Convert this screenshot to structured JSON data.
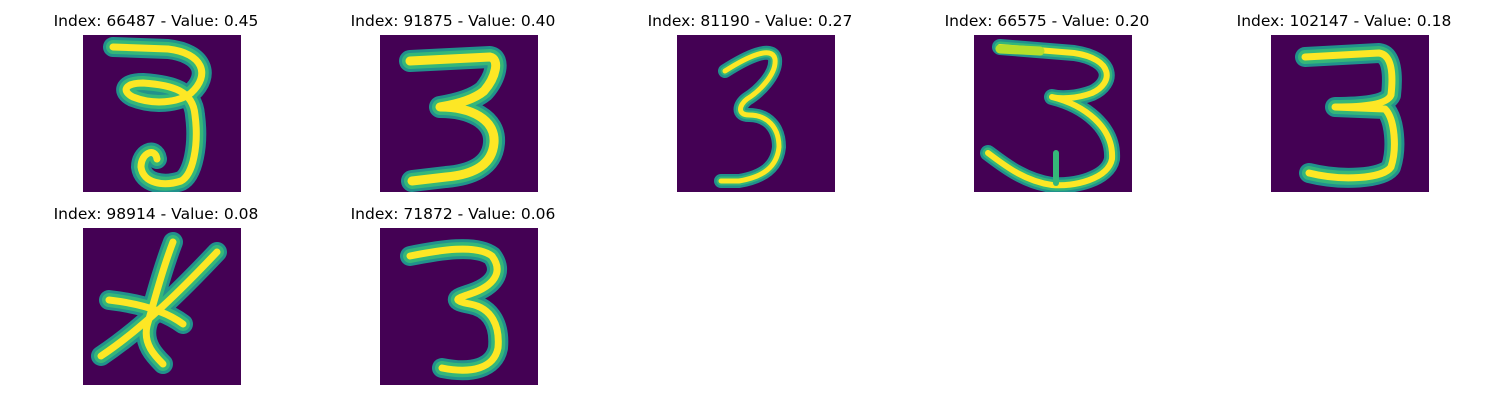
{
  "panels": [
    {
      "title": "Index: 66487 - Value: 0.45",
      "image": "handwritten-digit-3"
    },
    {
      "title": "Index: 91875 - Value: 0.40",
      "image": "handwritten-digit-3"
    },
    {
      "title": "Index: 81190 - Value: 0.27",
      "image": "handwritten-digit-3"
    },
    {
      "title": "Index: 66575 - Value: 0.20",
      "image": "handwritten-digit-3"
    },
    {
      "title": "Index: 102147 - Value: 0.18",
      "image": "handwritten-digit-3"
    },
    {
      "title": "Index: 98914 - Value: 0.08",
      "image": "handwritten-crossed-strokes"
    },
    {
      "title": "Index: 71872 - Value: 0.06",
      "image": "handwritten-digit-3"
    }
  ],
  "colors": {
    "background": "#440154",
    "stroke_core": "#fde725",
    "stroke_edge": "#35b779",
    "stroke_halo": "#21918c"
  }
}
